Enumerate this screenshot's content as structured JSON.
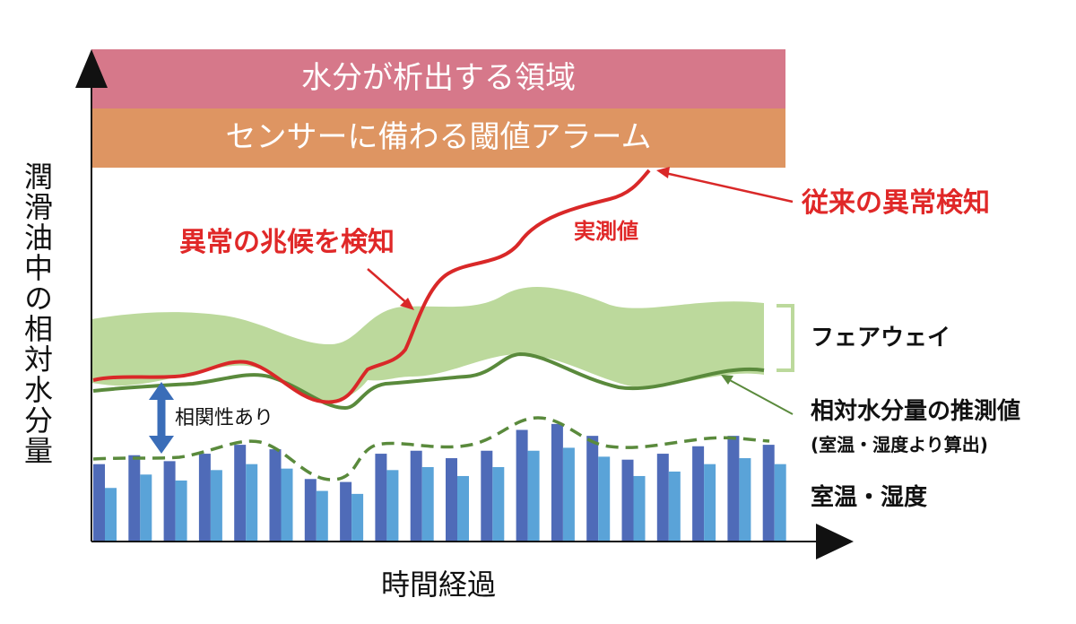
{
  "bands": {
    "top": "水分が析出する領域",
    "bottom": "センサーに備わる閾値アラーム"
  },
  "labels": {
    "anomaly_early": "異常の兆候を検知",
    "measured": "実測値",
    "anomaly_conventional": "従来の異常検知",
    "fairway": "フェアウェイ",
    "estimated": "相対水分量の推測値",
    "estimated_sub": "(室温・湿度より算出)",
    "temp_humidity": "室温・湿度",
    "correlation": "相関性あり",
    "ylabel": "潤滑油中の相対水分量",
    "xlabel": "時間経過"
  },
  "colors": {
    "band_top": "#d6788a",
    "band_bottom": "#de9562",
    "fairway": "#bcd99c",
    "estimate_line": "#5a8a3c",
    "measured_line": "#d92828",
    "bar_dark": "#4f6bb8",
    "bar_light": "#5aa3d8",
    "arrow": "#3a6db8",
    "axis": "#111111"
  },
  "chart_data": {
    "type": "bar",
    "series": [
      {
        "values": [
          0.52,
          0.58,
          0.54,
          0.59,
          0.65,
          0.62,
          0.42,
          0.4,
          0.59,
          0.61,
          0.56,
          0.61,
          0.75,
          0.79,
          0.71,
          0.55,
          0.59,
          0.64,
          0.71,
          0.65
        ]
      },
      {
        "values": [
          0.36,
          0.45,
          0.41,
          0.48,
          0.52,
          0.49,
          0.34,
          0.32,
          0.48,
          0.5,
          0.44,
          0.5,
          0.61,
          0.63,
          0.57,
          0.44,
          0.47,
          0.52,
          0.56,
          0.52
        ]
      }
    ]
  }
}
